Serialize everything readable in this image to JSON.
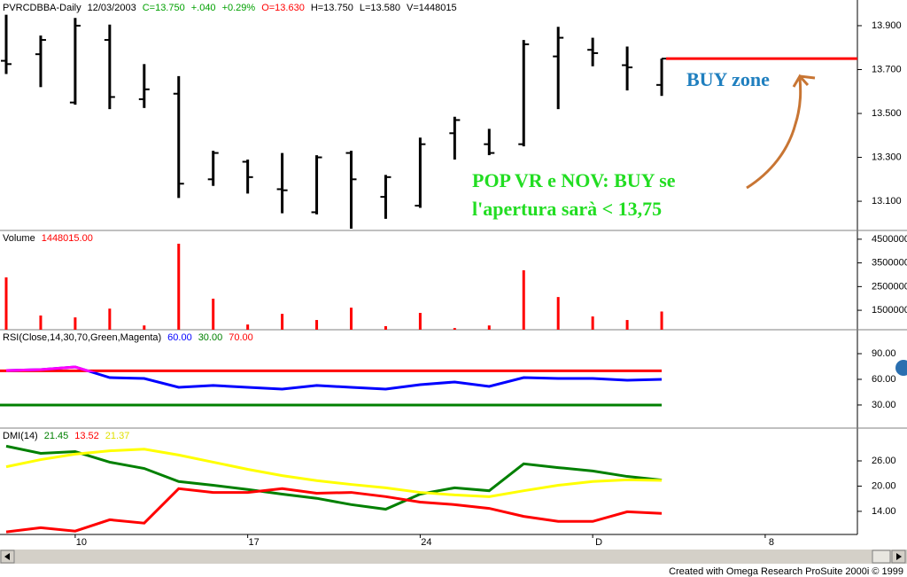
{
  "chart_data": [
    {
      "type": "ohlc",
      "header": [
        {
          "text": "PVRCDBBA-Daily",
          "color": "#000000"
        },
        {
          "text": "12/03/2003",
          "color": "#000000"
        },
        {
          "text": "C=13.750",
          "color": "#00a000"
        },
        {
          "text": "+.040",
          "color": "#00a000"
        },
        {
          "text": "+0.29%",
          "color": "#00a000"
        },
        {
          "text": "O=13.630",
          "color": "#ff0000"
        },
        {
          "text": "H=13.750",
          "color": "#000000"
        },
        {
          "text": "L=13.580",
          "color": "#000000"
        },
        {
          "text": "V=1448015",
          "color": "#000000"
        }
      ],
      "open": [
        13.74,
        13.77,
        13.55,
        13.835,
        13.565,
        13.59,
        13.2,
        13.28,
        13.155,
        13.05,
        13.32,
        13.12,
        13.08,
        13.41,
        13.36,
        13.36,
        13.76,
        13.79,
        13.72,
        13.63,
        null,
        null,
        null,
        null,
        null
      ],
      "high": [
        13.95,
        13.855,
        13.935,
        13.905,
        13.725,
        13.67,
        13.33,
        13.29,
        13.32,
        13.31,
        13.33,
        13.22,
        13.39,
        13.485,
        13.43,
        13.835,
        13.895,
        13.845,
        13.805,
        13.75,
        null,
        null,
        null,
        null,
        null
      ],
      "low": [
        13.68,
        13.62,
        13.54,
        13.52,
        13.525,
        13.115,
        13.17,
        13.135,
        13.045,
        13.04,
        12.975,
        13.02,
        13.07,
        13.29,
        13.31,
        13.35,
        13.52,
        13.715,
        13.605,
        13.58,
        null,
        null,
        null,
        null,
        null
      ],
      "close": [
        13.725,
        13.835,
        13.9,
        13.575,
        13.61,
        13.18,
        13.32,
        13.21,
        13.15,
        13.3,
        13.2,
        13.21,
        13.36,
        13.47,
        13.32,
        13.815,
        13.845,
        13.775,
        13.71,
        13.75,
        null,
        null,
        null,
        null,
        null
      ],
      "color": "#000000",
      "ylim": [
        12.967,
        14.017
      ],
      "yticks": [
        {
          "value": 13.1,
          "label": "13.100"
        },
        {
          "value": 13.3,
          "label": "13.300"
        },
        {
          "value": 13.5,
          "label": "13.500"
        },
        {
          "value": 13.7,
          "label": "13.700"
        },
        {
          "value": 13.9,
          "label": "13.900"
        }
      ],
      "buy_level": {
        "value": 13.75,
        "color": "#ff0000"
      },
      "annotations": [
        {
          "text": "BUY zone",
          "color": "#1f7fbf"
        },
        {
          "text": "POP VR e NOV: BUY se",
          "color": "#22dd22"
        },
        {
          "text": "l'apertura sarà < 13,75",
          "color": "#22dd22"
        }
      ]
    },
    {
      "type": "bar",
      "label": "Volume",
      "value_label": "1448015.00",
      "values": [
        2890000,
        1280000,
        1200000,
        1570000,
        860000,
        4310000,
        1990000,
        900000,
        1350000,
        1090000,
        1610000,
        830000,
        1390000,
        750000,
        860000,
        3190000,
        2060000,
        1240000,
        1090000,
        1448015,
        null,
        null,
        null,
        null,
        null
      ],
      "color": "#ff0000",
      "ylim": [
        680000,
        4870000
      ],
      "yticks": [
        1500000,
        2500000,
        3500000,
        4500000
      ]
    },
    {
      "type": "line",
      "label": "RSI(Close,14,30,70,Green,Magenta)",
      "readouts": [
        {
          "value": 60,
          "label": "60.00",
          "color": "#0000ff",
          "line": false
        },
        {
          "value": 30,
          "label": "30.00",
          "color": "#008000",
          "line": true
        },
        {
          "value": 70,
          "label": "70.00",
          "color": "#ff0000",
          "line": true
        }
      ],
      "series": [
        {
          "values": [
            70.3,
            71.4,
            74.5,
            62,
            61,
            50.7,
            52.8,
            50.7,
            48.6,
            52.8,
            50.7,
            48.6,
            53.8,
            56.9,
            51.7,
            62,
            61,
            61,
            59,
            60,
            null,
            null,
            null,
            null,
            null
          ],
          "color": "#0000ff",
          "color_above": "#ff00ff",
          "above": 70
        }
      ],
      "ylim": [
        3,
        118
      ],
      "yticks": [
        {
          "value": 30,
          "label": "30.00"
        },
        {
          "value": 60,
          "label": "60.00"
        },
        {
          "value": 90,
          "label": "90.00"
        }
      ]
    },
    {
      "type": "line",
      "label": "DMI(14)",
      "series": [
        {
          "values": [
            29.5,
            27.8,
            28.2,
            25.7,
            24.2,
            21.1,
            20.2,
            19.2,
            18.1,
            17.1,
            15.6,
            14.5,
            18.1,
            19.6,
            18.9,
            25.3,
            24.4,
            23.6,
            22.3,
            21.45,
            null,
            null,
            null,
            null,
            null
          ],
          "value_label": "21.45",
          "color": "#008000"
        },
        {
          "values": [
            9.1,
            10.1,
            9.3,
            12.0,
            11.2,
            19.4,
            18.5,
            18.5,
            19.4,
            18.3,
            18.5,
            17.5,
            16.2,
            15.6,
            14.7,
            12.8,
            11.6,
            11.6,
            13.9,
            13.52,
            null,
            null,
            null,
            null,
            null
          ],
          "value_label": "13.52",
          "color": "#ff0000"
        },
        {
          "values": [
            24.6,
            26.3,
            27.6,
            28.4,
            28.8,
            27.4,
            25.7,
            24.0,
            22.5,
            21.3,
            20.4,
            19.6,
            18.5,
            17.9,
            17.5,
            18.9,
            20.2,
            21.1,
            21.5,
            21.37,
            null,
            null,
            null,
            null,
            null
          ],
          "value_label": "21.37",
          "color": "#ffff00"
        }
      ],
      "ylim": [
        8.5,
        33.8
      ],
      "yticks": [
        {
          "value": 14,
          "label": "14.00"
        },
        {
          "value": 20,
          "label": "20.00"
        },
        {
          "value": 26,
          "label": "26.00"
        }
      ],
      "categories": [
        null,
        null,
        "10",
        null,
        null,
        null,
        null,
        "17",
        null,
        null,
        null,
        null,
        "24",
        null,
        null,
        null,
        null,
        "D",
        null,
        null,
        null,
        null,
        "8",
        null,
        null
      ]
    }
  ],
  "footer": "Created with Omega Research ProSuite 2000i © 1999"
}
